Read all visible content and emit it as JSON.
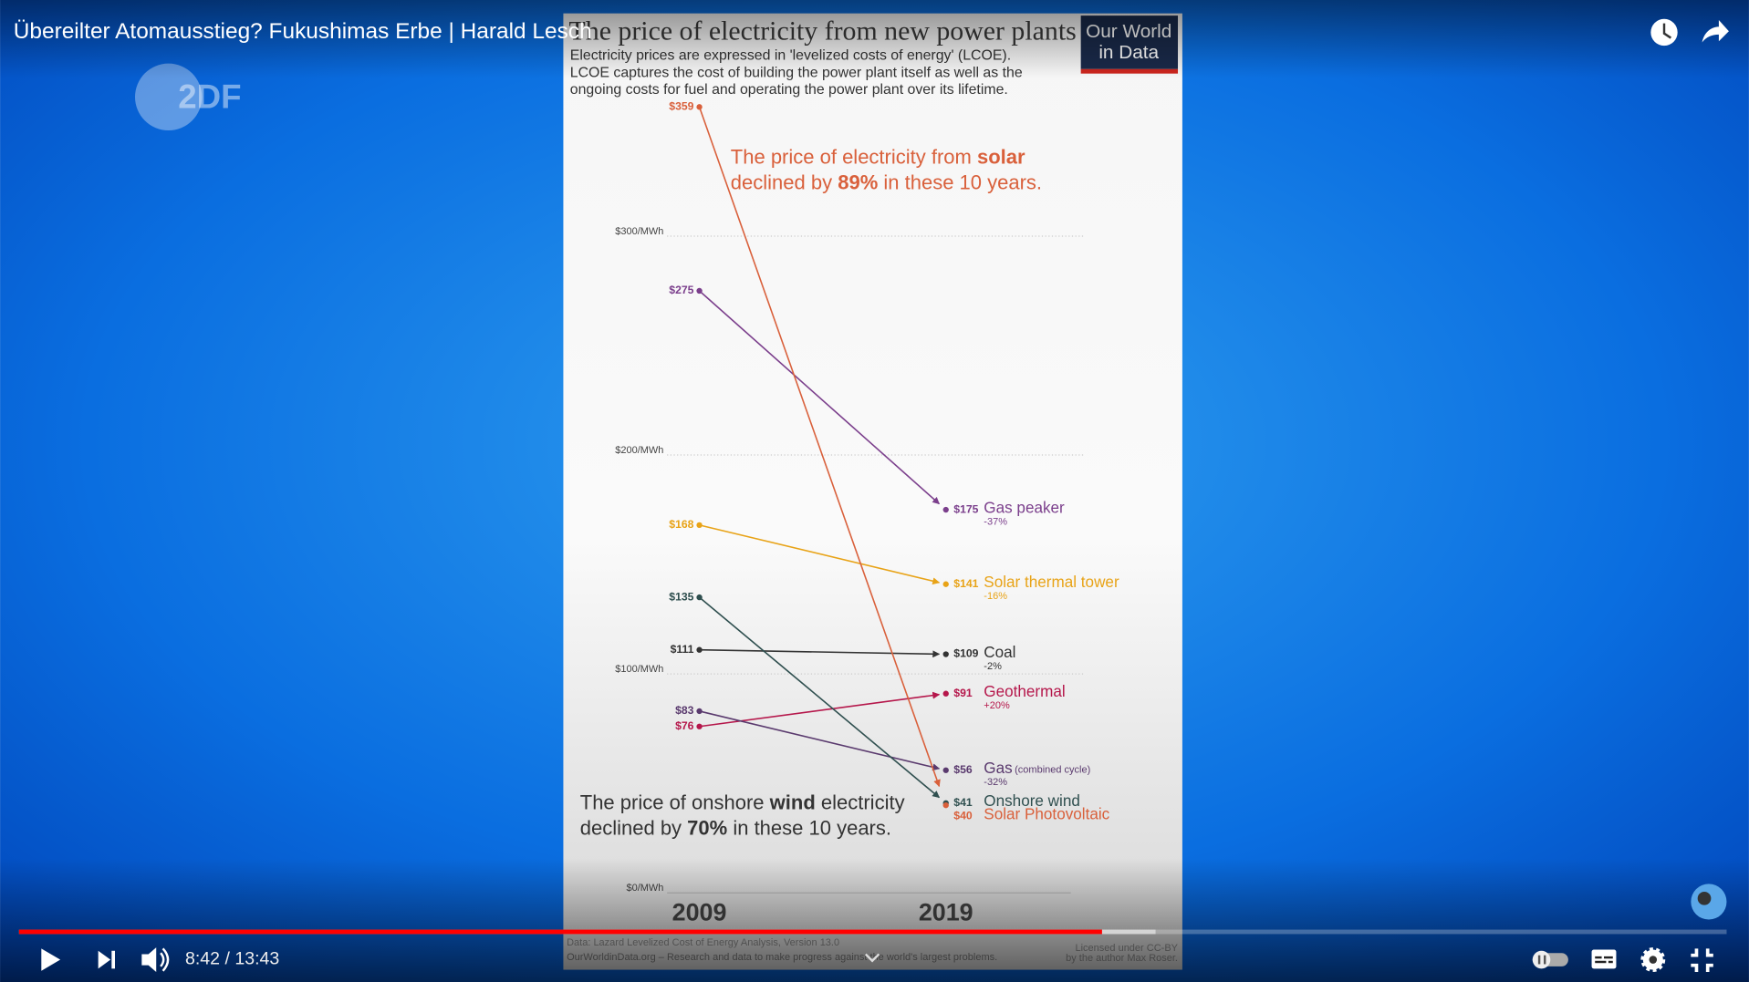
{
  "video": {
    "title": "Übereilter Atomausstieg? Fukushimas Erbe | Harald Lesch",
    "time": "8:42 / 13:43",
    "channel_logo": "2DF"
  },
  "chart_data": {
    "type": "slope",
    "title": "The price of electricity from new power plants",
    "subtitle": [
      "Electricity prices are expressed in 'levelized costs of energy' (LCOE).",
      "LCOE captures the cost of building the power plant itself as well as the",
      "ongoing costs for fuel and operating the power plant over its lifetime."
    ],
    "logo": [
      "Our World",
      "in Data"
    ],
    "categories": [
      "2009",
      "2019"
    ],
    "ylim": [
      0,
      360
    ],
    "yticks": [
      {
        "value": 0,
        "label": "$0/MWh"
      },
      {
        "value": 100,
        "label": "$100/MWh"
      },
      {
        "value": 200,
        "label": "$200/MWh"
      },
      {
        "value": 300,
        "label": "$300/MWh"
      }
    ],
    "grid": true,
    "series": [
      {
        "name": "Gas peaker",
        "color": "#7b3f8c",
        "values": [
          275,
          175
        ],
        "value_labels": [
          "$275",
          "$175"
        ],
        "change_label": "-37%"
      },
      {
        "name": "Solar thermal tower",
        "color": "#e8a317",
        "values": [
          168,
          141
        ],
        "value_labels": [
          "$168",
          "$141"
        ],
        "change_label": "-16%"
      },
      {
        "name": "Coal",
        "color": "#333333",
        "values": [
          111,
          109
        ],
        "value_labels": [
          "$111",
          "$109"
        ],
        "change_label": "-2%"
      },
      {
        "name": "Geothermal",
        "color": "#b5174b",
        "values": [
          76,
          91
        ],
        "value_labels": [
          "$76",
          "$91"
        ],
        "change_label": "+20%"
      },
      {
        "name": "Gas",
        "name_note": "(combined cycle)",
        "color": "#5a3a6e",
        "values": [
          83,
          56
        ],
        "value_labels": [
          "$83",
          "$56"
        ],
        "change_label": "-32%"
      },
      {
        "name": "Onshore wind",
        "color": "#2f4f4f",
        "values": [
          135,
          41
        ],
        "value_labels": [
          "$135",
          "$41"
        ]
      },
      {
        "name": "Solar Photovoltaic",
        "color": "#d9603b",
        "values": [
          359,
          40
        ],
        "value_labels": [
          "$359",
          "$40"
        ]
      }
    ],
    "annotations": [
      {
        "color": "#d9603b",
        "lines": [
          [
            "The price of electricity from ",
            "solar"
          ],
          [
            "declined by ",
            "89%",
            " in these 10 years."
          ]
        ]
      },
      {
        "color": "#333333",
        "lines": [
          [
            "The price of onshore ",
            "wind",
            " electricity"
          ],
          [
            "declined by ",
            "70%",
            " in these 10 years."
          ]
        ]
      }
    ],
    "source": "Data: Lazard Levelized Cost of Energy Analysis, Version 13.0",
    "footer": "OurWorldinData.org – Research and data to make progress against the world's largest problems.",
    "license": [
      "Licensed under CC-BY",
      "by the author Max Roser."
    ]
  }
}
